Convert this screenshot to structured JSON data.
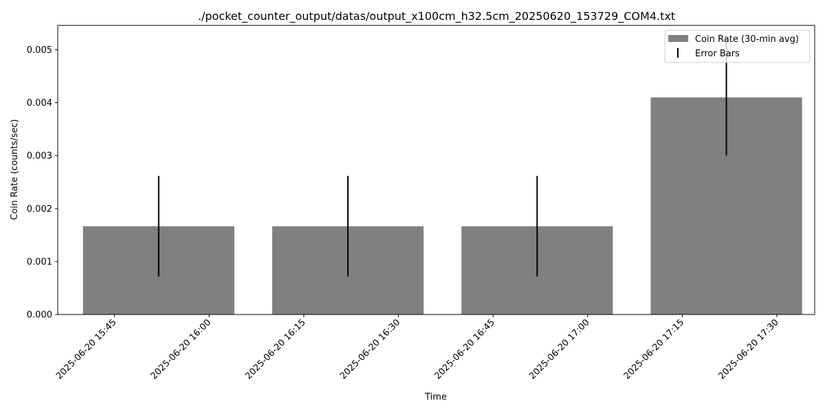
{
  "chart_data": {
    "type": "bar",
    "title": "./pocket_counter_output/datas/output_x100cm_h32.5cm_20250620_153729_COM4.txt",
    "xlabel": "Time",
    "ylabel": "Coin Rate (counts/sec)",
    "x_ticks": [
      "2025-06-20 15:45",
      "2025-06-20 16:00",
      "2025-06-20 16:15",
      "2025-06-20 16:30",
      "2025-06-20 16:45",
      "2025-06-20 17:00",
      "2025-06-20 17:15",
      "2025-06-20 17:30"
    ],
    "xlim": [
      "2025-06-20 15:36",
      "2025-06-20 17:36"
    ],
    "ylim": [
      0,
      0.00546
    ],
    "y_ticks": [
      "0.000",
      "0.001",
      "0.002",
      "0.003",
      "0.004",
      "0.005"
    ],
    "grid": false,
    "legend_position": "top-right",
    "series": [
      {
        "name": "Coin Rate (30-min avg)",
        "color": "#808080",
        "bars": [
          {
            "start": "2025-06-20 15:40",
            "end": "2025-06-20 16:04",
            "value": 0.001667,
            "error": 0.00095
          },
          {
            "start": "2025-06-20 16:10",
            "end": "2025-06-20 16:34",
            "value": 0.001667,
            "error": 0.00095
          },
          {
            "start": "2025-06-20 16:40",
            "end": "2025-06-20 17:04",
            "value": 0.001667,
            "error": 0.00095
          },
          {
            "start": "2025-06-20 17:10",
            "end": "2025-06-20 17:34",
            "value": 0.0041,
            "error": 0.0011
          }
        ]
      }
    ],
    "legend": [
      {
        "label": "Coin Rate (30-min avg)",
        "kind": "bar",
        "color": "#808080"
      },
      {
        "label": "Error Bars",
        "kind": "errorbar",
        "color": "#000000"
      }
    ]
  }
}
